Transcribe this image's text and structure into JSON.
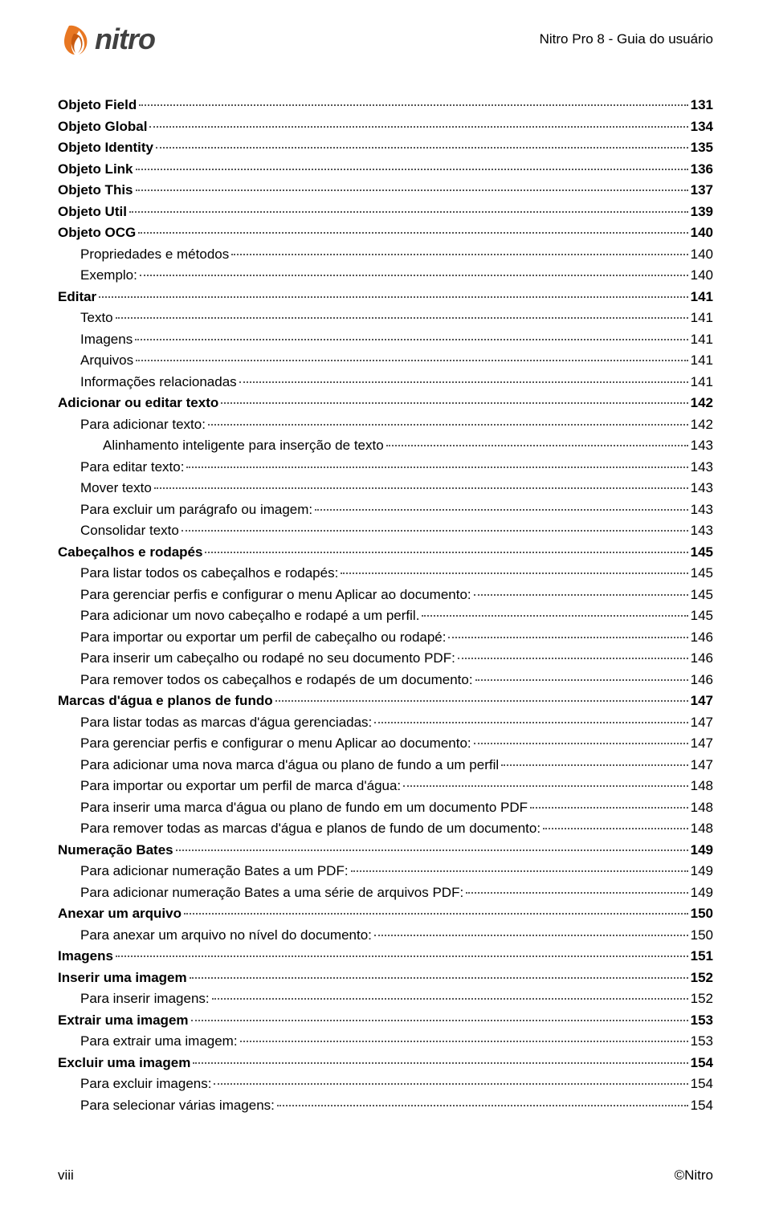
{
  "header": {
    "logo_text": "nitro",
    "title": "Nitro Pro 8 - Guia do usuário"
  },
  "colors": {
    "logo_orange": "#e87722",
    "logo_orange_dark": "#c85a0f",
    "text": "#000000",
    "logo_text": "#414141",
    "dots": "#555555"
  },
  "toc": [
    {
      "label": "Objeto Field",
      "page": "131",
      "bold": true,
      "indent": 0
    },
    {
      "label": "Objeto Global",
      "page": "134",
      "bold": true,
      "indent": 0
    },
    {
      "label": "Objeto Identity",
      "page": "135",
      "bold": true,
      "indent": 0
    },
    {
      "label": "Objeto Link",
      "page": "136",
      "bold": true,
      "indent": 0
    },
    {
      "label": "Objeto This",
      "page": "137",
      "bold": true,
      "indent": 0
    },
    {
      "label": "Objeto Util",
      "page": "139",
      "bold": true,
      "indent": 0
    },
    {
      "label": "Objeto OCG",
      "page": "140",
      "bold": true,
      "indent": 0
    },
    {
      "label": "Propriedades e métodos",
      "page": "140",
      "bold": false,
      "indent": 1
    },
    {
      "label": "Exemplo:",
      "page": "140",
      "bold": false,
      "indent": 1
    },
    {
      "label": "Editar",
      "page": "141",
      "bold": true,
      "indent": 0
    },
    {
      "label": "Texto",
      "page": "141",
      "bold": false,
      "indent": 1
    },
    {
      "label": "Imagens",
      "page": "141",
      "bold": false,
      "indent": 1
    },
    {
      "label": "Arquivos",
      "page": "141",
      "bold": false,
      "indent": 1
    },
    {
      "label": "Informações relacionadas",
      "page": "141",
      "bold": false,
      "indent": 1
    },
    {
      "label": "Adicionar ou editar texto",
      "page": "142",
      "bold": true,
      "indent": 0
    },
    {
      "label": "Para adicionar texto:",
      "page": "142",
      "bold": false,
      "indent": 1
    },
    {
      "label": "Alinhamento inteligente para inserção de texto",
      "page": "143",
      "bold": false,
      "indent": 2
    },
    {
      "label": "Para editar texto:",
      "page": "143",
      "bold": false,
      "indent": 1
    },
    {
      "label": "Mover texto",
      "page": "143",
      "bold": false,
      "indent": 1
    },
    {
      "label": "Para excluir um parágrafo ou imagem:",
      "page": "143",
      "bold": false,
      "indent": 1
    },
    {
      "label": "Consolidar texto",
      "page": "143",
      "bold": false,
      "indent": 1
    },
    {
      "label": "Cabeçalhos e rodapés",
      "page": "145",
      "bold": true,
      "indent": 0
    },
    {
      "label": "Para listar todos os cabeçalhos e rodapés:",
      "page": "145",
      "bold": false,
      "indent": 1
    },
    {
      "label": "Para gerenciar perfis e configurar o menu Aplicar ao documento:",
      "page": "145",
      "bold": false,
      "indent": 1
    },
    {
      "label": "Para adicionar um novo cabeçalho e rodapé a um perfil.",
      "page": "145",
      "bold": false,
      "indent": 1
    },
    {
      "label": "Para importar ou exportar um perfil de cabeçalho ou rodapé:",
      "page": "146",
      "bold": false,
      "indent": 1
    },
    {
      "label": "Para inserir um cabeçalho ou rodapé no seu documento PDF:",
      "page": "146",
      "bold": false,
      "indent": 1
    },
    {
      "label": "Para remover todos os cabeçalhos e rodapés de um documento:",
      "page": "146",
      "bold": false,
      "indent": 1
    },
    {
      "label": "Marcas d'água e planos de fundo",
      "page": "147",
      "bold": true,
      "indent": 0
    },
    {
      "label": "Para listar todas as marcas d'água gerenciadas:",
      "page": "147",
      "bold": false,
      "indent": 1
    },
    {
      "label": "Para gerenciar perfis e configurar o menu Aplicar ao documento:",
      "page": "147",
      "bold": false,
      "indent": 1
    },
    {
      "label": "Para adicionar uma nova marca d'água ou plano de fundo a um perfil",
      "page": "147",
      "bold": false,
      "indent": 1
    },
    {
      "label": "Para importar ou exportar um perfil de marca d'água:",
      "page": "148",
      "bold": false,
      "indent": 1
    },
    {
      "label": "Para inserir uma marca d'água ou plano de fundo em um documento PDF",
      "page": "148",
      "bold": false,
      "indent": 1
    },
    {
      "label": "Para remover todas as marcas d'água e planos de fundo de um documento:",
      "page": "148",
      "bold": false,
      "indent": 1
    },
    {
      "label": "Numeração Bates",
      "page": "149",
      "bold": true,
      "indent": 0
    },
    {
      "label": "Para adicionar numeração Bates a um PDF:",
      "page": "149",
      "bold": false,
      "indent": 1
    },
    {
      "label": "Para adicionar numeração Bates a uma série de arquivos PDF:",
      "page": "149",
      "bold": false,
      "indent": 1
    },
    {
      "label": "Anexar um arquivo",
      "page": "150",
      "bold": true,
      "indent": 0
    },
    {
      "label": "Para anexar um arquivo no nível do documento:",
      "page": "150",
      "bold": false,
      "indent": 1
    },
    {
      "label": "Imagens",
      "page": "151",
      "bold": true,
      "indent": 0
    },
    {
      "label": "Inserir uma imagem",
      "page": "152",
      "bold": true,
      "indent": 0
    },
    {
      "label": "Para inserir imagens:",
      "page": "152",
      "bold": false,
      "indent": 1
    },
    {
      "label": "Extrair uma imagem",
      "page": "153",
      "bold": true,
      "indent": 0
    },
    {
      "label": "Para extrair uma imagem:",
      "page": "153",
      "bold": false,
      "indent": 1
    },
    {
      "label": "Excluir uma imagem",
      "page": "154",
      "bold": true,
      "indent": 0
    },
    {
      "label": "Para excluir imagens:",
      "page": "154",
      "bold": false,
      "indent": 1
    },
    {
      "label": "Para selecionar várias imagens:",
      "page": "154",
      "bold": false,
      "indent": 1
    }
  ],
  "footer": {
    "left": "viii",
    "right": "©Nitro"
  }
}
